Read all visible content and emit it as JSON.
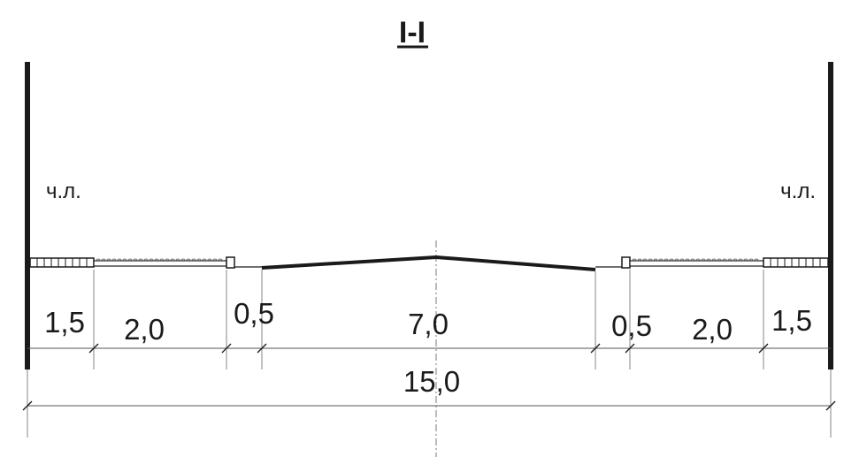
{
  "title": "I-I",
  "red_line_left": "ч.л.",
  "red_line_right": "ч.л.",
  "dimensions": {
    "left_strip": "1,5",
    "left_lawn": "2,0",
    "left_shoulder": "0,5",
    "carriageway": "7,0",
    "right_shoulder": "0,5",
    "right_lawn": "2,0",
    "right_strip": "1,5",
    "total": "15,0"
  },
  "colors": {
    "line": "#1a1a1a",
    "thin": "#555555",
    "grass": "#777777"
  }
}
